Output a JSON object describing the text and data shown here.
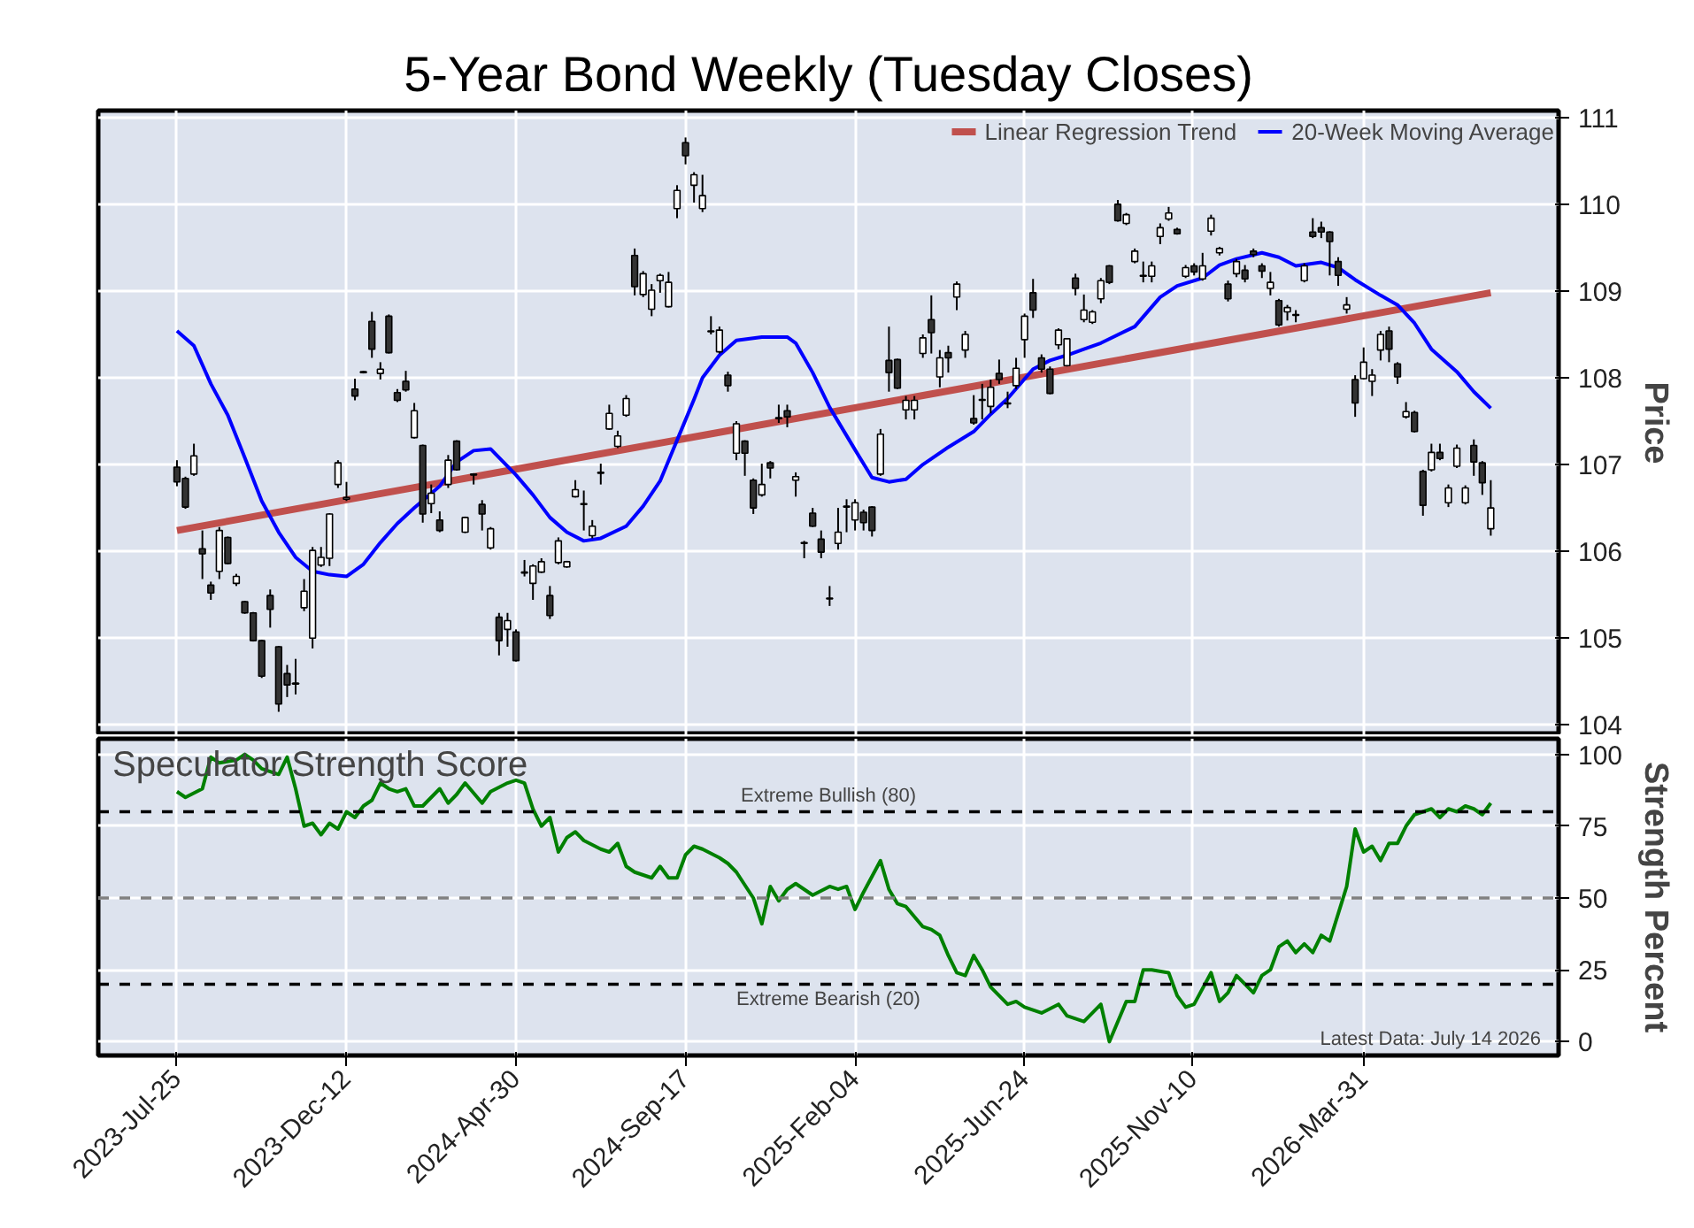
{
  "chart_data": [
    {
      "type": "candlestick",
      "title": "5-Year Bond Weekly (Tuesday Closes)",
      "ylabel": "Price",
      "x": [
        "2023-07-25",
        "2023-08-01",
        "2023-08-08",
        "2023-08-15",
        "2023-08-22",
        "2023-08-29",
        "2023-09-05",
        "2023-09-12",
        "2023-09-19",
        "2023-09-26",
        "2023-10-03",
        "2023-10-10",
        "2023-10-17",
        "2023-10-24",
        "2023-10-31",
        "2023-11-07",
        "2023-11-14",
        "2023-11-21",
        "2023-11-28",
        "2023-12-05",
        "2023-12-12",
        "2023-12-19",
        "2023-12-26",
        "2024-01-02",
        "2024-01-09",
        "2024-01-16",
        "2024-01-23",
        "2024-01-30",
        "2024-02-06",
        "2024-02-13",
        "2024-02-20",
        "2024-02-27",
        "2024-03-05",
        "2024-03-12",
        "2024-03-19",
        "2024-03-26",
        "2024-04-02",
        "2024-04-09",
        "2024-04-16",
        "2024-04-23",
        "2024-04-30",
        "2024-05-07",
        "2024-05-14",
        "2024-05-21",
        "2024-05-28",
        "2024-06-04",
        "2024-06-11",
        "2024-06-18",
        "2024-06-25",
        "2024-07-02",
        "2024-07-09",
        "2024-07-16",
        "2024-07-23",
        "2024-07-30",
        "2024-08-06",
        "2024-08-13",
        "2024-08-20",
        "2024-08-27",
        "2024-09-03",
        "2024-09-10",
        "2024-09-17",
        "2024-09-24",
        "2024-10-01",
        "2024-10-08",
        "2024-10-15",
        "2024-10-22",
        "2024-10-29",
        "2024-11-05",
        "2024-11-12",
        "2024-11-19",
        "2024-11-26",
        "2024-12-03",
        "2024-12-10",
        "2024-12-17",
        "2024-12-24",
        "2024-12-31",
        "2025-01-07",
        "2025-01-14",
        "2025-01-21",
        "2025-01-28",
        "2025-02-04",
        "2025-02-11",
        "2025-02-18",
        "2025-02-25",
        "2025-03-04",
        "2025-03-11",
        "2025-03-18",
        "2025-03-25",
        "2025-04-01",
        "2025-04-08",
        "2025-04-15",
        "2025-04-22",
        "2025-04-29",
        "2025-05-06",
        "2025-05-13",
        "2025-05-20",
        "2025-05-27",
        "2025-06-03",
        "2025-06-10",
        "2025-06-17",
        "2025-06-24",
        "2025-07-01",
        "2025-07-08",
        "2025-07-15",
        "2025-07-22",
        "2025-07-29",
        "2025-08-05",
        "2025-08-12",
        "2025-08-19",
        "2025-08-26",
        "2025-09-02",
        "2025-09-09",
        "2025-09-16",
        "2025-09-23",
        "2025-09-30",
        "2025-10-07",
        "2025-10-14",
        "2025-10-21",
        "2025-10-28",
        "2025-11-04",
        "2025-11-11",
        "2025-11-18",
        "2025-11-25",
        "2025-12-02",
        "2025-12-09",
        "2025-12-16",
        "2025-12-23",
        "2025-12-30",
        "2026-01-06",
        "2026-01-13",
        "2026-01-20",
        "2026-01-27",
        "2026-02-03",
        "2026-02-10",
        "2026-02-17",
        "2026-02-24",
        "2026-03-03",
        "2026-03-10",
        "2026-03-17",
        "2026-03-24",
        "2026-03-31",
        "2026-04-07",
        "2026-04-14",
        "2026-04-21",
        "2026-04-28",
        "2026-05-05",
        "2026-05-12",
        "2026-05-19",
        "2026-05-26",
        "2026-06-02",
        "2026-06-09",
        "2026-06-16",
        "2026-06-23",
        "2026-06-30",
        "2026-07-07",
        "2026-07-14"
      ],
      "ohlc": [
        [
          106.97,
          107.05,
          106.75,
          106.8
        ],
        [
          106.84,
          106.86,
          106.49,
          106.51
        ],
        [
          106.89,
          107.24,
          106.87,
          107.1
        ],
        [
          106.03,
          106.24,
          105.68,
          105.97
        ],
        [
          105.61,
          105.65,
          105.44,
          105.52
        ],
        [
          105.77,
          106.28,
          105.68,
          106.24
        ],
        [
          106.16,
          106.17,
          105.85,
          105.86
        ],
        [
          105.63,
          105.74,
          105.6,
          105.71
        ],
        [
          105.42,
          105.43,
          105.28,
          105.29
        ],
        [
          105.29,
          105.3,
          104.96,
          104.97
        ],
        [
          104.97,
          104.98,
          104.54,
          104.56
        ],
        [
          105.49,
          105.56,
          105.12,
          105.33
        ],
        [
          104.9,
          104.91,
          104.15,
          104.24
        ],
        [
          104.59,
          104.69,
          104.32,
          104.46
        ],
        [
          104.48,
          104.76,
          104.35,
          104.47
        ],
        [
          105.35,
          105.68,
          105.31,
          105.54
        ],
        [
          105.0,
          106.05,
          104.88,
          106.01
        ],
        [
          105.84,
          106.05,
          105.82,
          105.93
        ],
        [
          105.92,
          106.44,
          105.83,
          106.43
        ],
        [
          106.77,
          107.05,
          106.73,
          107.02
        ],
        [
          106.6,
          106.8,
          106.58,
          106.62
        ],
        [
          107.87,
          107.99,
          107.74,
          107.79
        ],
        [
          108.06,
          108.08,
          108.05,
          108.07
        ],
        [
          108.65,
          108.76,
          108.23,
          108.33
        ],
        [
          108.05,
          108.18,
          107.98,
          108.1
        ],
        [
          108.71,
          108.73,
          108.28,
          108.29
        ],
        [
          107.83,
          107.87,
          107.72,
          107.74
        ],
        [
          107.96,
          108.08,
          107.84,
          107.86
        ],
        [
          107.31,
          107.71,
          107.3,
          107.62
        ],
        [
          107.22,
          107.23,
          106.33,
          106.43
        ],
        [
          106.55,
          106.77,
          106.44,
          106.67
        ],
        [
          106.36,
          106.46,
          106.22,
          106.24
        ],
        [
          106.77,
          107.11,
          106.73,
          107.05
        ],
        [
          107.27,
          107.28,
          106.93,
          106.94
        ],
        [
          106.22,
          106.4,
          106.21,
          106.39
        ],
        [
          106.88,
          106.9,
          106.77,
          106.89
        ],
        [
          106.54,
          106.59,
          106.24,
          106.43
        ],
        [
          106.04,
          106.28,
          106.02,
          106.26
        ],
        [
          105.24,
          105.29,
          104.8,
          104.97
        ],
        [
          105.1,
          105.29,
          104.9,
          105.2
        ],
        [
          105.07,
          105.1,
          104.73,
          104.74
        ],
        [
          105.75,
          105.9,
          105.71,
          105.76
        ],
        [
          105.63,
          105.85,
          105.44,
          105.83
        ],
        [
          105.76,
          105.92,
          105.75,
          105.88
        ],
        [
          105.49,
          105.6,
          105.22,
          105.26
        ],
        [
          105.87,
          106.16,
          105.85,
          106.12
        ],
        [
          105.82,
          105.89,
          105.81,
          105.88
        ],
        [
          106.63,
          106.82,
          106.62,
          106.71
        ],
        [
          106.54,
          106.7,
          106.24,
          106.55
        ],
        [
          106.18,
          106.36,
          106.15,
          106.29
        ],
        [
          106.9,
          107.01,
          106.77,
          106.91
        ],
        [
          107.41,
          107.69,
          107.4,
          107.59
        ],
        [
          107.21,
          107.39,
          107.19,
          107.33
        ],
        [
          107.57,
          107.8,
          107.55,
          107.76
        ],
        [
          109.41,
          109.49,
          108.95,
          109.05
        ],
        [
          108.96,
          109.23,
          108.93,
          109.2
        ],
        [
          108.79,
          109.08,
          108.71,
          109.01
        ],
        [
          109.12,
          109.2,
          108.98,
          109.18
        ],
        [
          108.82,
          109.22,
          108.81,
          109.1
        ],
        [
          109.95,
          110.22,
          109.84,
          110.16
        ],
        [
          110.71,
          110.77,
          110.46,
          110.56
        ],
        [
          110.22,
          110.37,
          110.02,
          110.34
        ],
        [
          109.95,
          110.34,
          109.91,
          110.1
        ],
        [
          108.53,
          108.71,
          108.5,
          108.54
        ],
        [
          108.3,
          108.59,
          108.28,
          108.55
        ],
        [
          108.03,
          108.07,
          107.84,
          107.91
        ],
        [
          107.13,
          107.5,
          107.05,
          107.47
        ],
        [
          107.27,
          107.28,
          106.87,
          107.13
        ],
        [
          106.82,
          106.84,
          106.43,
          106.5
        ],
        [
          106.65,
          107.01,
          106.63,
          106.77
        ],
        [
          107.02,
          107.04,
          106.84,
          106.96
        ],
        [
          107.53,
          107.69,
          107.48,
          107.54
        ],
        [
          107.62,
          107.69,
          107.43,
          107.55
        ],
        [
          106.82,
          106.91,
          106.63,
          106.86
        ],
        [
          106.09,
          106.12,
          105.92,
          106.1
        ],
        [
          106.44,
          106.5,
          106.28,
          106.29
        ],
        [
          106.14,
          106.24,
          105.92,
          105.99
        ],
        [
          105.46,
          105.6,
          105.37,
          105.45
        ],
        [
          106.09,
          106.5,
          106.02,
          106.22
        ],
        [
          106.51,
          106.6,
          106.22,
          106.52
        ],
        [
          106.36,
          106.6,
          106.24,
          106.56
        ],
        [
          106.45,
          106.48,
          106.24,
          106.33
        ],
        [
          106.51,
          106.52,
          106.17,
          106.24
        ],
        [
          106.89,
          107.41,
          106.87,
          107.35
        ],
        [
          108.2,
          108.59,
          107.84,
          108.06
        ],
        [
          108.21,
          108.22,
          107.87,
          107.88
        ],
        [
          107.63,
          107.79,
          107.52,
          107.74
        ],
        [
          107.63,
          107.79,
          107.52,
          107.74
        ],
        [
          108.28,
          108.5,
          108.23,
          108.46
        ],
        [
          108.67,
          108.95,
          108.28,
          108.52
        ],
        [
          108.01,
          108.32,
          107.89,
          108.23
        ],
        [
          108.29,
          108.37,
          108.06,
          108.23
        ],
        [
          108.93,
          109.11,
          108.78,
          109.08
        ],
        [
          108.32,
          108.54,
          108.23,
          108.5
        ],
        [
          107.53,
          107.8,
          107.46,
          107.48
        ],
        [
          107.74,
          107.93,
          107.52,
          107.75
        ],
        [
          107.67,
          107.98,
          107.59,
          107.89
        ],
        [
          108.05,
          108.21,
          107.93,
          107.98
        ],
        [
          107.7,
          107.84,
          107.65,
          107.71
        ],
        [
          107.91,
          108.23,
          107.87,
          108.11
        ],
        [
          108.44,
          108.74,
          108.23,
          108.71
        ],
        [
          108.98,
          109.14,
          108.69,
          108.78
        ],
        [
          108.23,
          108.27,
          108.06,
          108.1
        ],
        [
          108.1,
          108.13,
          107.81,
          107.82
        ],
        [
          108.38,
          108.57,
          108.33,
          108.55
        ],
        [
          108.14,
          108.45,
          108.13,
          108.45
        ],
        [
          109.15,
          109.2,
          108.95,
          109.03
        ],
        [
          108.67,
          108.96,
          108.64,
          108.78
        ],
        [
          108.64,
          108.78,
          108.62,
          108.76
        ],
        [
          108.91,
          109.15,
          108.86,
          109.12
        ],
        [
          109.29,
          109.3,
          109.08,
          109.1
        ],
        [
          110.0,
          110.05,
          109.8,
          109.81
        ],
        [
          109.78,
          109.9,
          109.76,
          109.88
        ],
        [
          109.34,
          109.49,
          109.32,
          109.46
        ],
        [
          109.17,
          109.34,
          109.1,
          109.18
        ],
        [
          109.17,
          109.34,
          109.1,
          109.29
        ],
        [
          109.63,
          109.78,
          109.54,
          109.73
        ],
        [
          109.83,
          109.97,
          109.81,
          109.9
        ],
        [
          109.71,
          109.73,
          109.65,
          109.66
        ],
        [
          109.17,
          109.3,
          109.15,
          109.27
        ],
        [
          109.29,
          109.32,
          109.18,
          109.22
        ],
        [
          109.14,
          109.44,
          109.12,
          109.29
        ],
        [
          109.69,
          109.88,
          109.64,
          109.84
        ],
        [
          109.44,
          109.51,
          109.41,
          109.49
        ],
        [
          109.08,
          109.12,
          108.88,
          108.91
        ],
        [
          109.2,
          109.37,
          109.16,
          109.34
        ],
        [
          109.24,
          109.3,
          109.1,
          109.14
        ],
        [
          109.46,
          109.49,
          109.39,
          109.42
        ],
        [
          109.29,
          109.32,
          109.15,
          109.23
        ],
        [
          109.03,
          109.22,
          108.95,
          109.1
        ],
        [
          108.89,
          108.91,
          108.59,
          108.61
        ],
        [
          108.76,
          108.84,
          108.66,
          108.81
        ],
        [
          108.73,
          108.78,
          108.64,
          108.72
        ],
        [
          109.12,
          109.32,
          109.1,
          109.29
        ],
        [
          109.68,
          109.84,
          109.61,
          109.63
        ],
        [
          109.73,
          109.8,
          109.61,
          109.68
        ],
        [
          109.68,
          109.69,
          109.18,
          109.57
        ],
        [
          109.34,
          109.39,
          109.06,
          109.18
        ],
        [
          108.79,
          108.93,
          108.74,
          108.84
        ],
        [
          107.98,
          108.03,
          107.55,
          107.71
        ],
        [
          107.99,
          108.35,
          107.98,
          108.18
        ],
        [
          107.96,
          108.1,
          107.79,
          108.03
        ],
        [
          108.32,
          108.54,
          108.2,
          108.5
        ],
        [
          108.54,
          108.59,
          108.18,
          108.33
        ],
        [
          108.16,
          108.18,
          107.93,
          108.01
        ],
        [
          107.55,
          107.72,
          107.53,
          107.61
        ],
        [
          107.6,
          107.62,
          107.37,
          107.38
        ],
        [
          106.92,
          106.94,
          106.41,
          106.53
        ],
        [
          106.94,
          107.24,
          106.92,
          107.14
        ],
        [
          107.14,
          107.24,
          107.05,
          107.07
        ],
        [
          106.56,
          106.77,
          106.51,
          106.73
        ],
        [
          106.98,
          107.23,
          106.96,
          107.19
        ],
        [
          106.56,
          106.76,
          106.54,
          106.73
        ],
        [
          107.22,
          107.29,
          106.87,
          107.03
        ],
        [
          107.02,
          107.04,
          106.65,
          106.79
        ],
        [
          106.26,
          106.82,
          106.18,
          106.5
        ]
      ],
      "series": [
        {
          "type": "line",
          "name": "Linear Regression Trend",
          "color": "#c0504d",
          "x": [
            "2023-07-25",
            "2026-07-14"
          ],
          "values": [
            106.24,
            108.98
          ]
        },
        {
          "type": "line",
          "name": "20-Week Moving Average",
          "color": "#0000ff",
          "x": [
            "2023-07-25",
            "2023-08-08",
            "2023-08-22",
            "2023-09-05",
            "2023-09-19",
            "2023-10-03",
            "2023-10-17",
            "2023-10-31",
            "2023-11-14",
            "2023-11-28",
            "2023-12-12",
            "2023-12-26",
            "2024-01-09",
            "2024-01-23",
            "2024-02-06",
            "2024-02-27",
            "2024-03-12",
            "2024-03-26",
            "2024-04-09",
            "2024-04-30",
            "2024-05-14",
            "2024-05-28",
            "2024-06-11",
            "2024-06-25",
            "2024-07-09",
            "2024-07-30",
            "2024-08-13",
            "2024-08-27",
            "2024-09-10",
            "2024-09-24",
            "2024-10-01",
            "2024-10-15",
            "2024-10-29",
            "2024-11-19",
            "2024-12-10",
            "2024-12-17",
            "2024-12-31",
            "2025-01-14",
            "2025-02-04",
            "2025-02-18",
            "2025-03-04",
            "2025-03-18",
            "2025-04-01",
            "2025-04-22",
            "2025-05-13",
            "2025-05-27",
            "2025-06-10",
            "2025-07-01",
            "2025-07-15",
            "2025-07-29",
            "2025-08-12",
            "2025-08-26",
            "2025-09-23",
            "2025-10-14",
            "2025-10-28",
            "2025-11-18",
            "2025-12-02",
            "2025-12-16",
            "2026-01-06",
            "2026-01-20",
            "2026-02-03",
            "2026-02-24",
            "2026-03-10",
            "2026-03-24",
            "2026-04-14",
            "2026-04-28",
            "2026-05-12",
            "2026-05-26",
            "2026-06-16",
            "2026-06-30",
            "2026-07-14"
          ],
          "values": [
            108.54,
            108.37,
            107.93,
            107.57,
            107.08,
            106.58,
            106.22,
            105.93,
            105.77,
            105.73,
            105.71,
            105.85,
            106.1,
            106.32,
            106.5,
            106.75,
            107.03,
            107.16,
            107.18,
            106.88,
            106.65,
            106.39,
            106.22,
            106.12,
            106.15,
            106.29,
            106.52,
            106.81,
            107.28,
            107.75,
            108.0,
            108.26,
            108.43,
            108.47,
            108.47,
            108.4,
            108.06,
            107.66,
            107.17,
            106.85,
            106.8,
            106.83,
            107.0,
            107.2,
            107.38,
            107.58,
            107.76,
            108.1,
            108.2,
            108.26,
            108.33,
            108.4,
            108.59,
            108.93,
            109.06,
            109.15,
            109.3,
            109.37,
            109.44,
            109.39,
            109.29,
            109.33,
            109.27,
            109.13,
            108.95,
            108.84,
            108.63,
            108.33,
            108.07,
            107.84,
            107.65
          ]
        }
      ],
      "xlim": [
        "2023-05-21",
        "2026-09-08"
      ],
      "xticks": [
        {
          "value": "2023-07-25",
          "label": null
        },
        {
          "value": "2023-12-12",
          "label": null
        },
        {
          "value": "2024-04-30",
          "label": null
        },
        {
          "value": "2024-09-17",
          "label": null
        },
        {
          "value": "2025-02-04",
          "label": null
        },
        {
          "value": "2025-06-24",
          "label": null
        },
        {
          "value": "2025-11-10",
          "label": null
        },
        {
          "value": "2026-03-31",
          "label": null
        }
      ],
      "ylim": [
        103.88,
        111.08
      ],
      "yticks": [
        104,
        105,
        106,
        107,
        108,
        109,
        110,
        111
      ],
      "tick_labels": "y",
      "grid": true,
      "legend": "top right"
    },
    {
      "type": "line",
      "title": "Speculator Strength Score",
      "ylabel": "Strength Percent",
      "series": [
        {
          "color": "#008000",
          "x": [
            "2023-07-25",
            "2023-08-01",
            "2023-08-15",
            "2023-08-22",
            "2023-08-29",
            "2023-09-12",
            "2023-09-19",
            "2023-09-26",
            "2023-10-03",
            "2023-10-17",
            "2023-10-24",
            "2023-10-31",
            "2023-11-07",
            "2023-11-14",
            "2023-11-21",
            "2023-11-28",
            "2023-12-05",
            "2023-12-12",
            "2023-12-19",
            "2023-12-26",
            "2024-01-02",
            "2024-01-09",
            "2024-01-16",
            "2024-01-23",
            "2024-01-30",
            "2024-02-06",
            "2024-02-13",
            "2024-02-27",
            "2024-03-05",
            "2024-03-12",
            "2024-03-19",
            "2024-04-02",
            "2024-04-09",
            "2024-04-23",
            "2024-04-30",
            "2024-05-07",
            "2024-05-14",
            "2024-05-21",
            "2024-05-28",
            "2024-06-04",
            "2024-06-11",
            "2024-06-18",
            "2024-06-25",
            "2024-07-09",
            "2024-07-16",
            "2024-07-23",
            "2024-07-30",
            "2024-08-06",
            "2024-08-20",
            "2024-08-27",
            "2024-09-03",
            "2024-09-10",
            "2024-09-17",
            "2024-09-24",
            "2024-10-01",
            "2024-10-15",
            "2024-10-22",
            "2024-10-29",
            "2024-11-12",
            "2024-11-19",
            "2024-11-26",
            "2024-12-03",
            "2024-12-10",
            "2024-12-17",
            "2024-12-31",
            "2025-01-14",
            "2025-01-21",
            "2025-01-28",
            "2025-02-04",
            "2025-02-11",
            "2025-02-25",
            "2025-03-04",
            "2025-03-11",
            "2025-03-18",
            "2025-04-01",
            "2025-04-08",
            "2025-04-15",
            "2025-04-22",
            "2025-04-29",
            "2025-05-06",
            "2025-05-13",
            "2025-05-20",
            "2025-05-27",
            "2025-06-10",
            "2025-06-17",
            "2025-06-24",
            "2025-07-08",
            "2025-07-22",
            "2025-07-29",
            "2025-08-12",
            "2025-08-26",
            "2025-09-02",
            "2025-09-16",
            "2025-09-23",
            "2025-09-30",
            "2025-10-07",
            "2025-10-21",
            "2025-10-28",
            "2025-11-04",
            "2025-11-11",
            "2025-11-25",
            "2025-12-02",
            "2025-12-09",
            "2025-12-16",
            "2025-12-30",
            "2026-01-06",
            "2026-01-13",
            "2026-01-20",
            "2026-01-27",
            "2026-02-03",
            "2026-02-10",
            "2026-02-17",
            "2026-02-24",
            "2026-03-03",
            "2026-03-17",
            "2026-03-24",
            "2026-03-31",
            "2026-04-07",
            "2026-04-14",
            "2026-04-21",
            "2026-04-28",
            "2026-05-05",
            "2026-05-12",
            "2026-05-19",
            "2026-05-26",
            "2026-06-02",
            "2026-06-09",
            "2026-06-16",
            "2026-06-23",
            "2026-06-30",
            "2026-07-07",
            "2026-07-14"
          ],
          "values": [
            87,
            85,
            88,
            99,
            97,
            98,
            100,
            98,
            95,
            93,
            99,
            88,
            75,
            76,
            72,
            76,
            74,
            80,
            78,
            82,
            84,
            90,
            88,
            87,
            88,
            82,
            82,
            88,
            83,
            86,
            90,
            83,
            87,
            90,
            91,
            90,
            81,
            75,
            78,
            66,
            71,
            73,
            70,
            67,
            66,
            69,
            61,
            59,
            57,
            61,
            57,
            57,
            65,
            68,
            67,
            64,
            62,
            59,
            50,
            41,
            54,
            49,
            53,
            55,
            51,
            54,
            53,
            54,
            46,
            52,
            63,
            53,
            48,
            47,
            40,
            39,
            37,
            30,
            24,
            23,
            30,
            25,
            19,
            13,
            14,
            12,
            10,
            13,
            9,
            7,
            13,
            0,
            14,
            14,
            25,
            25,
            24,
            16,
            12,
            13,
            24,
            14,
            17,
            23,
            17,
            23,
            25,
            33,
            35,
            31,
            34,
            31,
            37,
            35,
            54,
            74,
            66,
            68,
            63,
            69,
            69,
            75,
            79,
            80,
            81,
            78,
            81,
            80,
            82,
            81,
            79,
            83
          ]
        }
      ],
      "xlim": [
        "2023-05-21",
        "2026-09-08"
      ],
      "xticks": [
        {
          "value": "2023-07-25",
          "label": "2023-Jul-25"
        },
        {
          "value": "2023-12-12",
          "label": "2023-Dec-12"
        },
        {
          "value": "2024-04-30",
          "label": "2024-Apr-30"
        },
        {
          "value": "2024-09-17",
          "label": "2024-Sep-17"
        },
        {
          "value": "2025-02-04",
          "label": "2025-Feb-04"
        },
        {
          "value": "2025-06-24",
          "label": "2025-Jun-24"
        },
        {
          "value": "2025-11-10",
          "label": "2025-Nov-10"
        },
        {
          "value": "2026-03-31",
          "label": "2026-Mar-31"
        }
      ],
      "ylim": [
        -4.8,
        105.4
      ],
      "yticks": [
        0,
        25,
        50,
        75,
        100
      ],
      "grid": true,
      "ref_lines": [
        {
          "axis": "y",
          "value": 80,
          "label": "Extreme Bullish (80)",
          "color": "#000000",
          "line_style": "dashed"
        },
        {
          "axis": "y",
          "value": 50,
          "color": "#808080",
          "line_style": "dashed"
        },
        {
          "axis": "y",
          "value": 20,
          "label": "Extreme Bearish (20)",
          "color": "#000000",
          "line_style": "dashed"
        }
      ],
      "annotations": [
        "Latest Data: July 14 2026"
      ]
    }
  ]
}
